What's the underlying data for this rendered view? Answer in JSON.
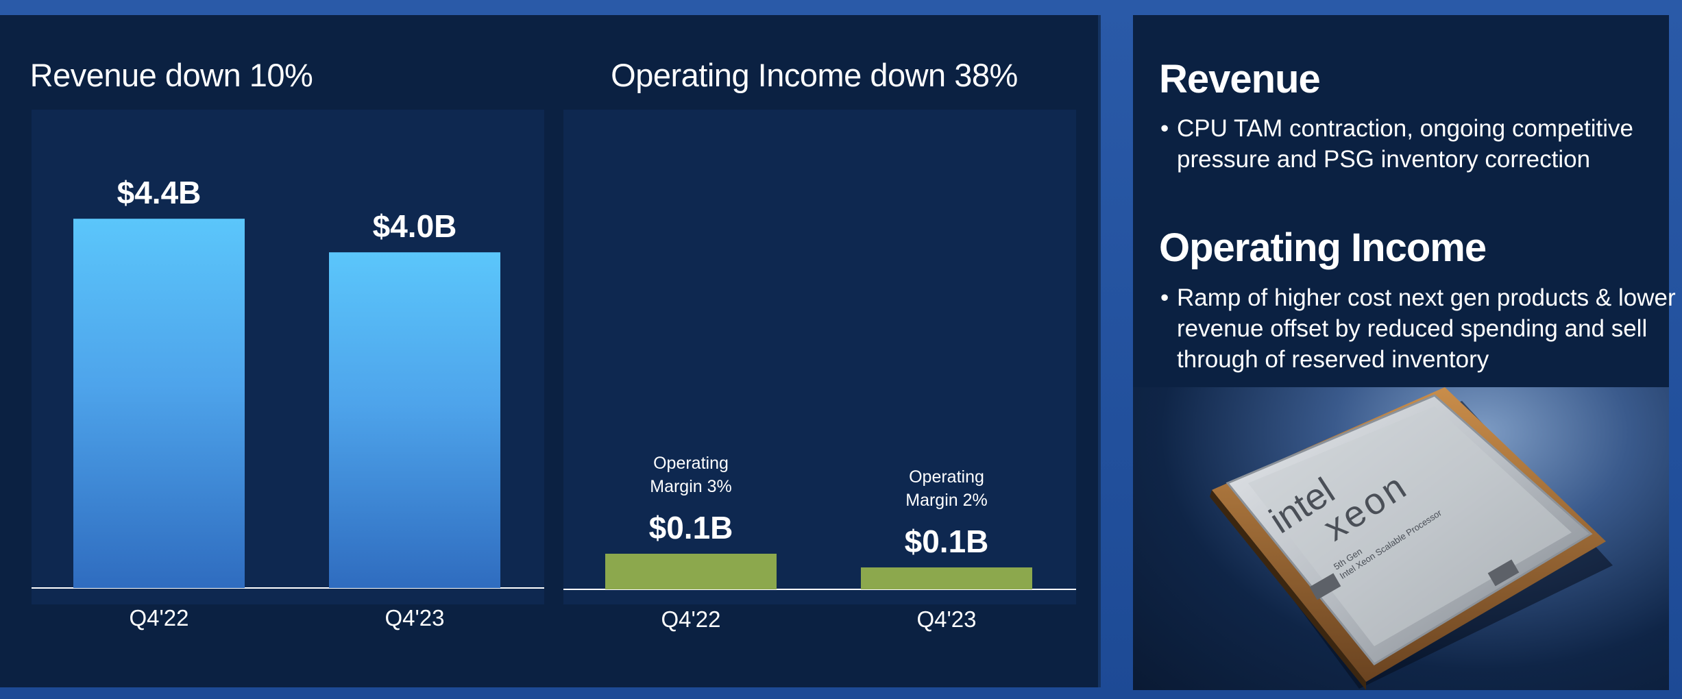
{
  "charts": {
    "revenue": {
      "title": "Revenue down 10%"
    },
    "operating_income": {
      "title": "Operating Income down 38%"
    }
  },
  "chart_data": [
    {
      "type": "bar",
      "title": "Revenue down 10%",
      "categories": [
        "Q4'22",
        "Q4'23"
      ],
      "values": [
        4.4,
        4.0
      ],
      "value_labels": [
        "$4.4B",
        "$4.0B"
      ],
      "unit": "$B",
      "ylim": [
        0,
        5.7
      ],
      "color": "#5bc2f7"
    },
    {
      "type": "bar",
      "title": "Operating Income down 38%",
      "categories": [
        "Q4'22",
        "Q4'23"
      ],
      "values": [
        0.13,
        0.08
      ],
      "value_labels": [
        "$0.1B",
        "$0.1B"
      ],
      "margin_labels": [
        [
          "Operating",
          "Margin 3%"
        ],
        [
          "Operating",
          "Margin 2%"
        ]
      ],
      "unit": "$B",
      "ylim": [
        0,
        1.75
      ],
      "color": "#8ca84d"
    }
  ],
  "sidebar": {
    "revenue": {
      "heading": "Revenue",
      "bullet": "CPU TAM contraction, ongoing competitive pressure and PSG inventory correction"
    },
    "operating_income": {
      "heading": "Operating Income",
      "bullet": "Ramp of higher cost next gen products & lower revenue offset by reduced spending and sell through of reserved inventory"
    }
  },
  "product_image": {
    "brand": "intel",
    "product": "xeon",
    "generation": "5th Gen",
    "subtitle": "Intel Xeon Scalable Processor"
  }
}
